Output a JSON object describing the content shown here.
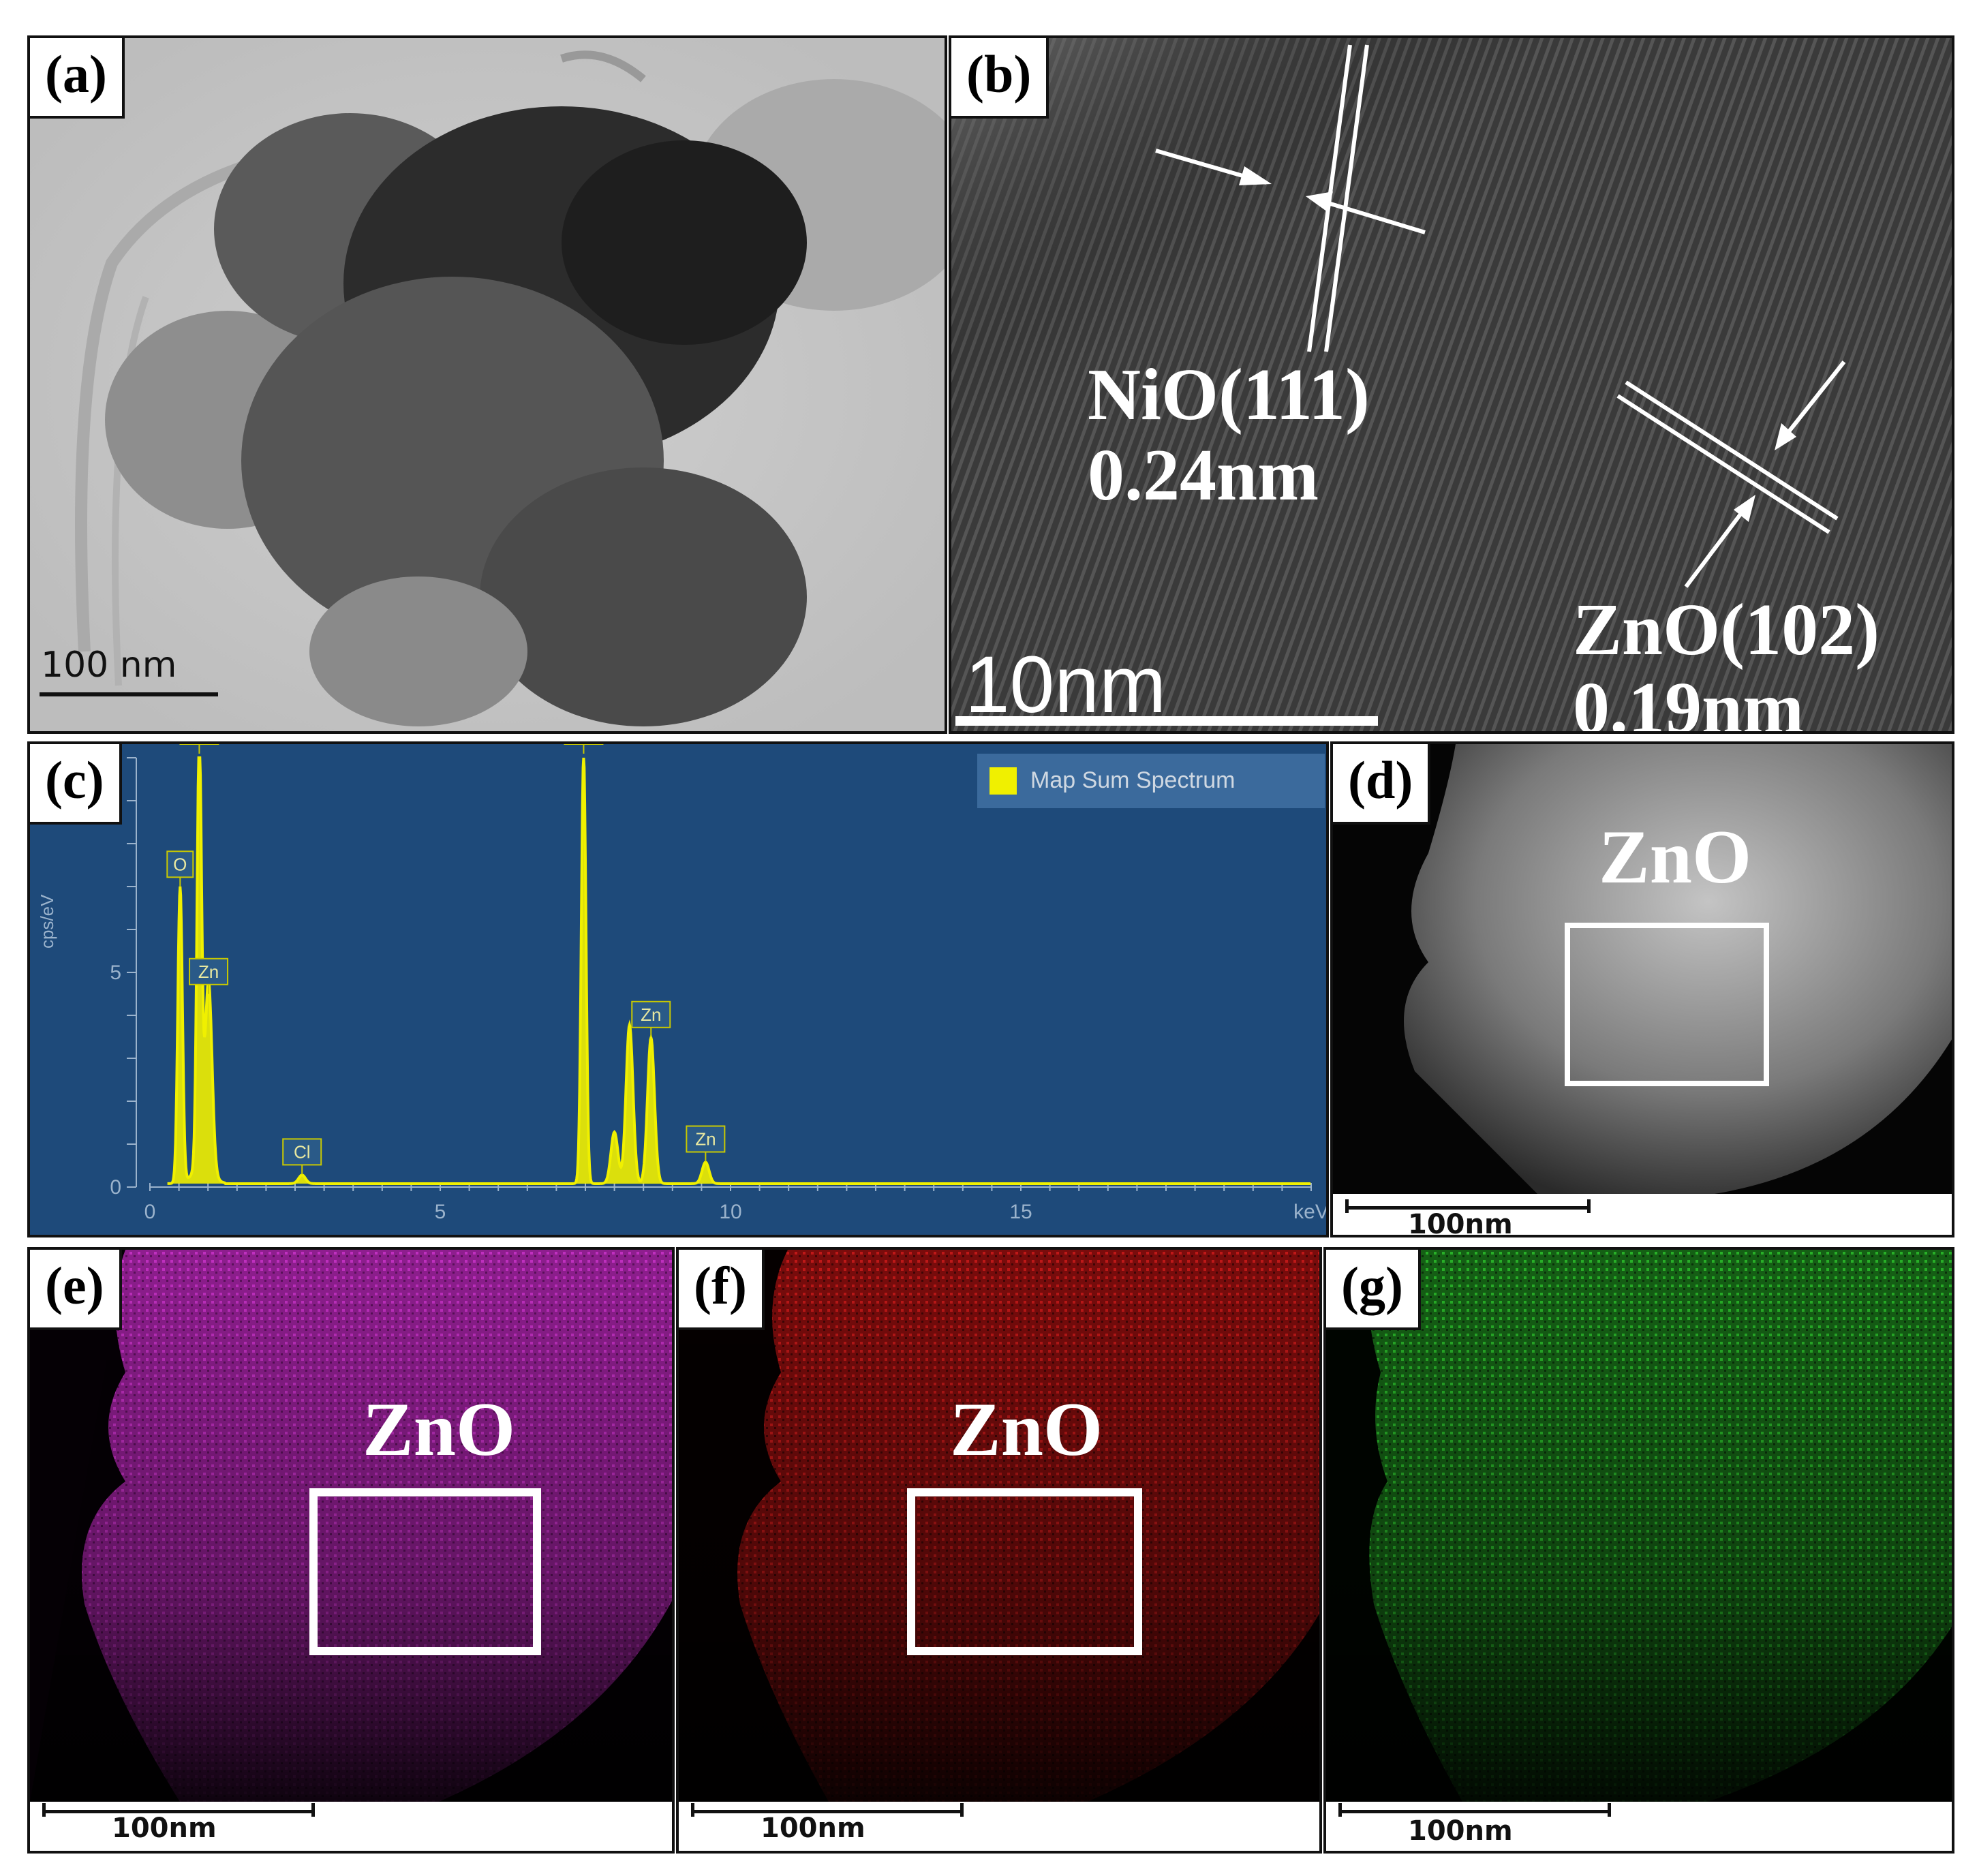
{
  "panels": {
    "a": {
      "label": "(a)",
      "scale": "100 nm"
    },
    "b": {
      "label": "(b)",
      "scale": "10nm",
      "annotations": [
        {
          "phase": "NiO(111)",
          "spacing": "0.24nm"
        },
        {
          "phase": "ZnO(102)",
          "spacing": "0.19nm"
        }
      ]
    },
    "c": {
      "label": "(c)"
    },
    "d": {
      "label": "(d)",
      "region": "ZnO",
      "scale": "100nm"
    },
    "e": {
      "label": "(e)",
      "region": "ZnO",
      "scale": "100nm",
      "color": "#c000c0"
    },
    "f": {
      "label": "(f)",
      "region": "ZnO",
      "scale": "100nm",
      "color": "#d01818"
    },
    "g": {
      "label": "(g)",
      "scale": "100nm",
      "color": "#20b020"
    }
  },
  "chart_data": {
    "type": "line",
    "title": "",
    "ylabel": "cps/eV",
    "xlabel": "keV",
    "legend": "Map Sum Spectrum",
    "legend_placement": "top-right",
    "xlim": [
      0,
      20
    ],
    "ylim": [
      0,
      10
    ],
    "x_ticks": [
      "0",
      "5",
      "10",
      "15",
      "keV"
    ],
    "y_ticks": [
      "0",
      "5"
    ],
    "series_color": "#f0f000",
    "background": "#1e4a7a",
    "peaks": [
      {
        "label": "O",
        "x": 0.52,
        "y": 6.9
      },
      {
        "label": "Ni",
        "x": 0.85,
        "y": 10.0
      },
      {
        "label": "Zn",
        "x": 1.01,
        "y": 4.4
      },
      {
        "label": "Cl",
        "x": 2.62,
        "y": 0.2
      },
      {
        "label": "Ni",
        "x": 7.47,
        "y": 10.0
      },
      {
        "label": "Zn",
        "x": 8.63,
        "y": 3.4
      },
      {
        "label": "Zn",
        "x": 9.57,
        "y": 0.5
      }
    ],
    "unlabeled_peaks": [
      {
        "x": 8.26,
        "y": 3.7
      },
      {
        "x": 8.0,
        "y": 1.2
      }
    ]
  }
}
